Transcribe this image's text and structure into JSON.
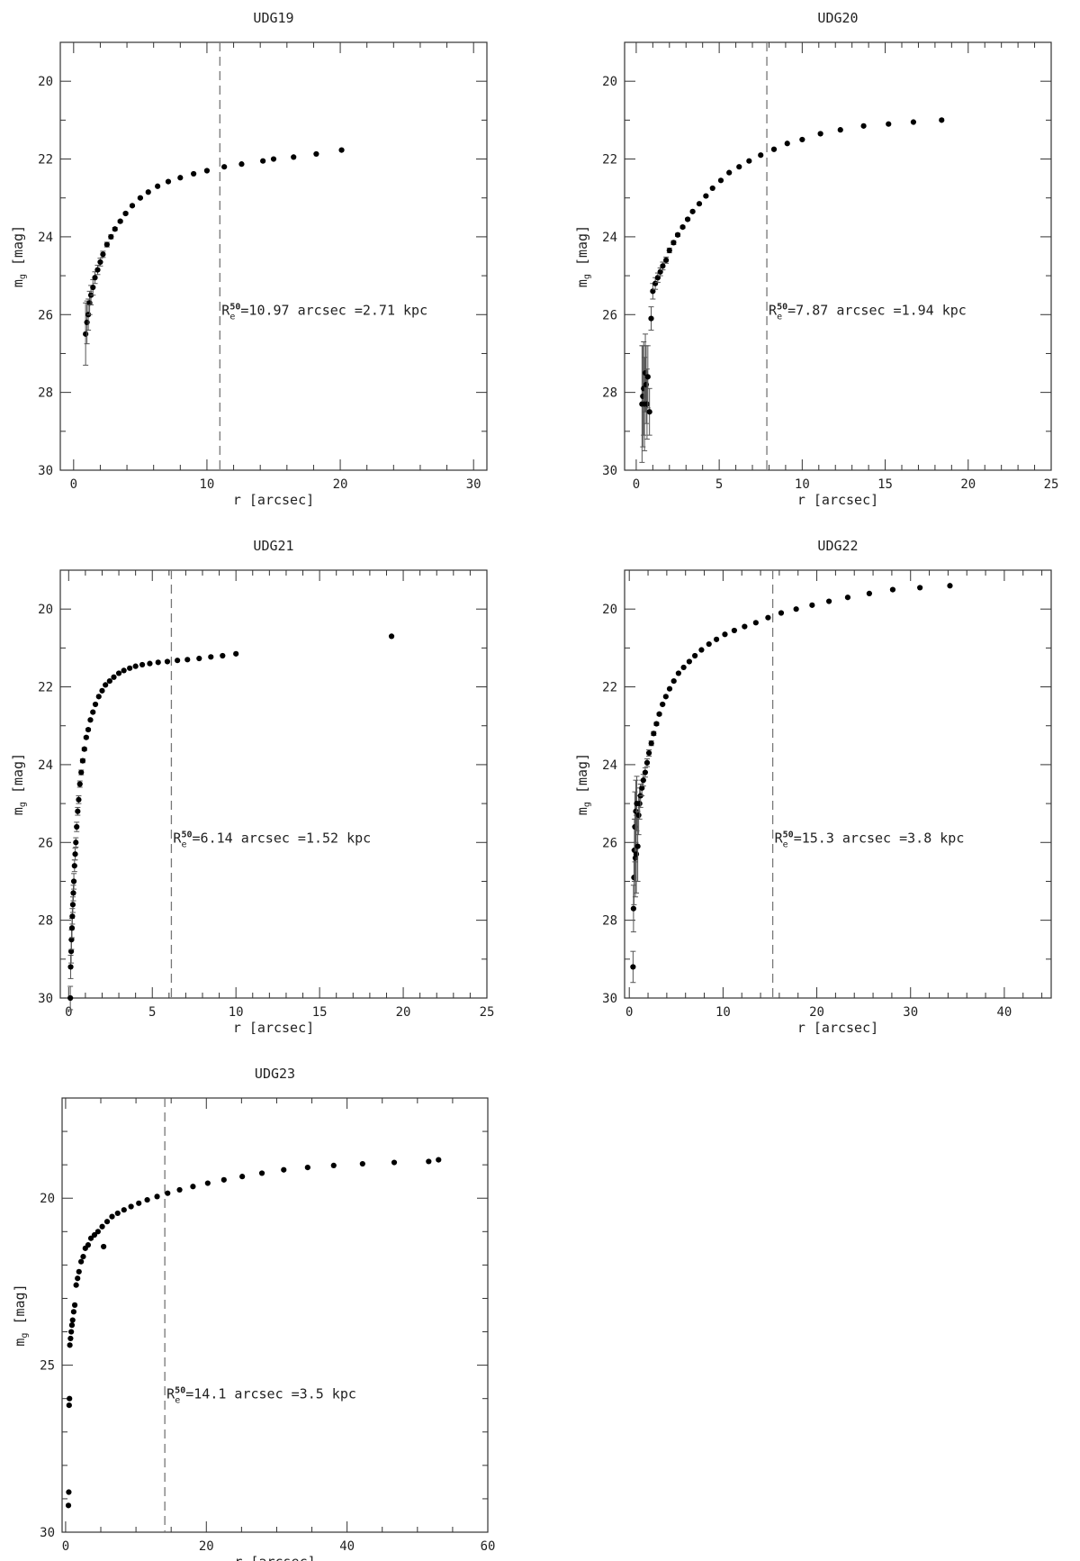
{
  "figure": {
    "panels": [
      {
        "title": "UDG19",
        "xlabel": "r [arcsec]",
        "ylabel": "m",
        "ylabel_sub": "g",
        "ylabel_unit": " [mag]",
        "xlim": [
          -1,
          31
        ],
        "ylim": [
          30,
          19
        ],
        "xticks_major": [
          0,
          10,
          20,
          30
        ],
        "xticks_minor": [
          2,
          4,
          6,
          8,
          12,
          14,
          16,
          18,
          22,
          24,
          26,
          28
        ],
        "yticks_major": [
          20,
          22,
          24,
          26,
          28,
          30
        ],
        "yticks_minor": [
          21,
          23,
          25,
          27,
          29
        ],
        "re_value": 10.97,
        "annot_R": "R",
        "annot_sub": "e",
        "annot_sup": "50",
        "annot_text": "=10.97 arcsec =2.71 kpc",
        "annot_y": 26.0,
        "x": [
          0.9,
          1.0,
          1.1,
          1.2,
          1.3,
          1.45,
          1.6,
          1.8,
          2.0,
          2.2,
          2.5,
          2.8,
          3.1,
          3.5,
          3.9,
          4.4,
          5.0,
          5.6,
          6.3,
          7.1,
          8.0,
          9.0,
          10.0,
          11.3,
          12.6,
          14.2,
          15.0,
          16.5,
          18.2,
          20.1
        ],
        "y": [
          26.5,
          26.2,
          26.0,
          25.7,
          25.5,
          25.3,
          25.05,
          24.85,
          24.65,
          24.45,
          24.2,
          24.0,
          23.8,
          23.6,
          23.4,
          23.2,
          23.0,
          22.85,
          22.7,
          22.58,
          22.48,
          22.38,
          22.3,
          22.2,
          22.13,
          22.05,
          22.0,
          21.95,
          21.87,
          21.77
        ],
        "err": [
          0.8,
          0.55,
          0.4,
          0.3,
          0.25,
          0.2,
          0.15,
          0.12,
          0.1,
          0.08,
          0.06,
          0.05,
          0.04,
          0.03,
          0.03,
          0.02,
          0.02,
          0,
          0,
          0,
          0,
          0,
          0,
          0,
          0,
          0,
          0,
          0,
          0,
          0
        ]
      },
      {
        "title": "UDG20",
        "xlabel": "r [arcsec]",
        "ylabel": "m",
        "ylabel_sub": "g",
        "ylabel_unit": " [mag]",
        "xlim": [
          -0.7,
          25
        ],
        "ylim": [
          30,
          19
        ],
        "xticks_major": [
          0,
          5,
          10,
          15,
          20,
          25
        ],
        "xticks_minor": [
          1,
          2,
          3,
          4,
          6,
          7,
          8,
          9,
          11,
          12,
          13,
          14,
          16,
          17,
          18,
          19,
          21,
          22,
          23,
          24
        ],
        "yticks_major": [
          20,
          22,
          24,
          26,
          28,
          30
        ],
        "yticks_minor": [
          21,
          23,
          25,
          27,
          29
        ],
        "re_value": 7.87,
        "annot_R": "R",
        "annot_sub": "e",
        "annot_sup": "50",
        "annot_text": "=7.87 arcsec =1.94 kpc",
        "annot_y": 26.0,
        "x": [
          0.35,
          0.4,
          0.45,
          0.5,
          0.55,
          0.6,
          0.65,
          0.7,
          0.8,
          0.9,
          1.0,
          1.15,
          1.3,
          1.45,
          1.6,
          1.8,
          2.0,
          2.25,
          2.5,
          2.8,
          3.1,
          3.4,
          3.8,
          4.2,
          4.6,
          5.1,
          5.6,
          6.2,
          6.8,
          7.5,
          8.3,
          9.1,
          10.0,
          11.1,
          12.3,
          13.7,
          15.2,
          16.7,
          18.4
        ],
        "y": [
          28.3,
          28.1,
          27.9,
          28.3,
          27.5,
          27.8,
          28.3,
          27.6,
          28.5,
          26.1,
          25.4,
          25.2,
          25.05,
          24.9,
          24.75,
          24.6,
          24.35,
          24.15,
          23.95,
          23.75,
          23.55,
          23.35,
          23.15,
          22.95,
          22.75,
          22.55,
          22.35,
          22.2,
          22.05,
          21.9,
          21.75,
          21.6,
          21.5,
          21.35,
          21.25,
          21.15,
          21.1,
          21.05,
          21.0
        ],
        "err": [
          1.5,
          1.3,
          1.2,
          1.2,
          1.0,
          1.0,
          0.9,
          0.8,
          0.6,
          0.3,
          0.2,
          0.15,
          0.12,
          0.1,
          0.1,
          0.08,
          0.06,
          0.05,
          0.04,
          0.03,
          0.03,
          0.02,
          0,
          0,
          0,
          0,
          0,
          0,
          0,
          0,
          0,
          0,
          0,
          0,
          0,
          0,
          0,
          0,
          0
        ]
      },
      {
        "title": "UDG21",
        "xlabel": "r [arcsec]",
        "ylabel": "m",
        "ylabel_sub": "g",
        "ylabel_unit": " [mag]",
        "xlim": [
          -0.5,
          25
        ],
        "ylim": [
          30,
          19
        ],
        "xticks_major": [
          0,
          5,
          10,
          15,
          20,
          25
        ],
        "xticks_minor": [
          1,
          2,
          3,
          4,
          6,
          7,
          8,
          9,
          11,
          12,
          13,
          14,
          16,
          17,
          18,
          19,
          21,
          22,
          23,
          24
        ],
        "yticks_major": [
          20,
          22,
          24,
          26,
          28,
          30
        ],
        "yticks_minor": [
          21,
          23,
          25,
          27,
          29
        ],
        "re_value": 6.14,
        "annot_R": "R",
        "annot_sub": "e",
        "annot_sup": "50",
        "annot_text": "=6.14 arcsec =1.52 kpc",
        "annot_y": 26.0,
        "x": [
          0.1,
          0.12,
          0.15,
          0.17,
          0.2,
          0.22,
          0.25,
          0.28,
          0.31,
          0.35,
          0.39,
          0.43,
          0.48,
          0.54,
          0.6,
          0.67,
          0.75,
          0.84,
          0.94,
          1.05,
          1.17,
          1.3,
          1.45,
          1.6,
          1.8,
          2.0,
          2.2,
          2.45,
          2.7,
          3.0,
          3.3,
          3.65,
          4.0,
          4.4,
          4.85,
          5.35,
          5.9,
          6.5,
          7.1,
          7.8,
          8.5,
          9.2,
          10.0,
          19.3
        ],
        "y": [
          30.0,
          29.2,
          28.8,
          28.5,
          28.2,
          27.9,
          27.6,
          27.3,
          27.0,
          26.6,
          26.3,
          26.0,
          25.6,
          25.2,
          24.9,
          24.5,
          24.2,
          23.9,
          23.6,
          23.3,
          23.1,
          22.85,
          22.65,
          22.45,
          22.25,
          22.1,
          21.95,
          21.85,
          21.75,
          21.65,
          21.58,
          21.52,
          21.47,
          21.43,
          21.4,
          21.37,
          21.35,
          21.32,
          21.3,
          21.27,
          21.23,
          21.2,
          21.15,
          20.7
        ],
        "err": [
          0.3,
          0.3,
          0.3,
          0.25,
          0.25,
          0.2,
          0.2,
          0.2,
          0.2,
          0.15,
          0.15,
          0.12,
          0.12,
          0.1,
          0.1,
          0.08,
          0.06,
          0.05,
          0.04,
          0.03,
          0.03,
          0.02,
          0,
          0,
          0,
          0,
          0,
          0,
          0,
          0,
          0,
          0,
          0,
          0,
          0,
          0,
          0,
          0,
          0,
          0,
          0,
          0,
          0,
          0
        ]
      },
      {
        "title": "UDG22",
        "xlabel": "r [arcsec]",
        "ylabel": "m",
        "ylabel_sub": "g",
        "ylabel_unit": " [mag]",
        "xlim": [
          -0.5,
          45
        ],
        "ylim": [
          30,
          19
        ],
        "xticks_major": [
          0,
          10,
          20,
          30,
          40
        ],
        "xticks_minor": [
          2,
          4,
          6,
          8,
          12,
          14,
          16,
          18,
          22,
          24,
          26,
          28,
          32,
          34,
          36,
          38,
          42,
          44
        ],
        "yticks_major": [
          20,
          22,
          24,
          26,
          28,
          30
        ],
        "yticks_minor": [
          21,
          23,
          25,
          27,
          29
        ],
        "re_value": 15.3,
        "annot_R": "R",
        "annot_sub": "e",
        "annot_sup": "50",
        "annot_text": "=15.3 arcsec =3.8 kpc",
        "annot_y": 26.0,
        "x": [
          0.4,
          0.45,
          0.5,
          0.55,
          0.6,
          0.65,
          0.7,
          0.75,
          0.8,
          0.9,
          1.0,
          1.1,
          1.2,
          1.35,
          1.5,
          1.7,
          1.9,
          2.1,
          2.35,
          2.6,
          2.9,
          3.2,
          3.55,
          3.9,
          4.3,
          4.75,
          5.25,
          5.8,
          6.4,
          7.0,
          7.7,
          8.5,
          9.3,
          10.2,
          11.2,
          12.3,
          13.5,
          14.8,
          16.2,
          17.8,
          19.5,
          21.3,
          23.3,
          25.6,
          28.1,
          31.0,
          34.2
        ],
        "y": [
          29.2,
          27.7,
          26.9,
          26.2,
          25.6,
          26.4,
          25.2,
          26.3,
          25.0,
          26.1,
          25.3,
          25.0,
          24.8,
          24.6,
          24.4,
          24.2,
          23.95,
          23.7,
          23.45,
          23.2,
          22.95,
          22.7,
          22.45,
          22.25,
          22.05,
          21.85,
          21.65,
          21.5,
          21.35,
          21.2,
          21.05,
          20.9,
          20.78,
          20.65,
          20.55,
          20.45,
          20.35,
          20.22,
          20.1,
          20.0,
          19.9,
          19.8,
          19.7,
          19.6,
          19.5,
          19.45,
          19.4
        ],
        "err": [
          0.4,
          0.6,
          0.7,
          0.8,
          0.9,
          1.0,
          0.8,
          1.0,
          0.7,
          0.9,
          0.5,
          0.4,
          0.3,
          0.2,
          0.15,
          0.12,
          0.1,
          0.08,
          0.06,
          0.05,
          0.04,
          0.03,
          0.02,
          0,
          0,
          0,
          0,
          0,
          0,
          0,
          0,
          0,
          0,
          0,
          0,
          0,
          0,
          0,
          0,
          0,
          0,
          0,
          0,
          0,
          0,
          0,
          0
        ]
      },
      {
        "title": "UDG23",
        "xlabel": "r [arcsec]",
        "ylabel": "m",
        "ylabel_sub": "g",
        "ylabel_unit": " [mag]",
        "xlim": [
          -0.5,
          60
        ],
        "ylim": [
          30,
          17
        ],
        "xticks_major": [
          0,
          20,
          40,
          60
        ],
        "xticks_minor": [
          5,
          10,
          15,
          25,
          30,
          35,
          45,
          50,
          55
        ],
        "yticks_major": [
          20,
          25,
          30
        ],
        "yticks_minor": [
          18,
          19,
          21,
          22,
          23,
          24,
          26,
          27,
          28,
          29
        ],
        "re_value": 14.1,
        "annot_R": "R",
        "annot_sub": "e",
        "annot_sup": "50",
        "annot_text": "=14.1 arcsec =3.5 kpc",
        "annot_y": 26.0,
        "x": [
          0.4,
          0.45,
          0.5,
          0.55,
          0.6,
          0.7,
          0.8,
          0.9,
          1.0,
          1.15,
          1.3,
          1.5,
          1.7,
          1.9,
          2.2,
          2.5,
          2.8,
          3.2,
          3.6,
          4.1,
          4.6,
          5.2,
          5.4,
          5.9,
          6.6,
          7.4,
          8.3,
          9.3,
          10.4,
          11.6,
          13.0,
          14.5,
          16.2,
          18.1,
          20.2,
          22.5,
          25.1,
          27.9,
          31.0,
          34.4,
          38.1,
          42.2,
          46.7,
          51.6,
          53.0
        ],
        "y": [
          29.2,
          28.8,
          26.2,
          26.0,
          24.4,
          24.2,
          24.0,
          23.8,
          23.65,
          23.4,
          23.2,
          22.6,
          22.4,
          22.2,
          21.9,
          21.75,
          21.5,
          21.4,
          21.2,
          21.1,
          21.0,
          20.85,
          21.45,
          20.7,
          20.55,
          20.45,
          20.35,
          20.25,
          20.15,
          20.05,
          19.95,
          19.85,
          19.75,
          19.65,
          19.55,
          19.45,
          19.35,
          19.25,
          19.15,
          19.08,
          19.02,
          18.97,
          18.93,
          18.9,
          18.85
        ]
      }
    ]
  }
}
